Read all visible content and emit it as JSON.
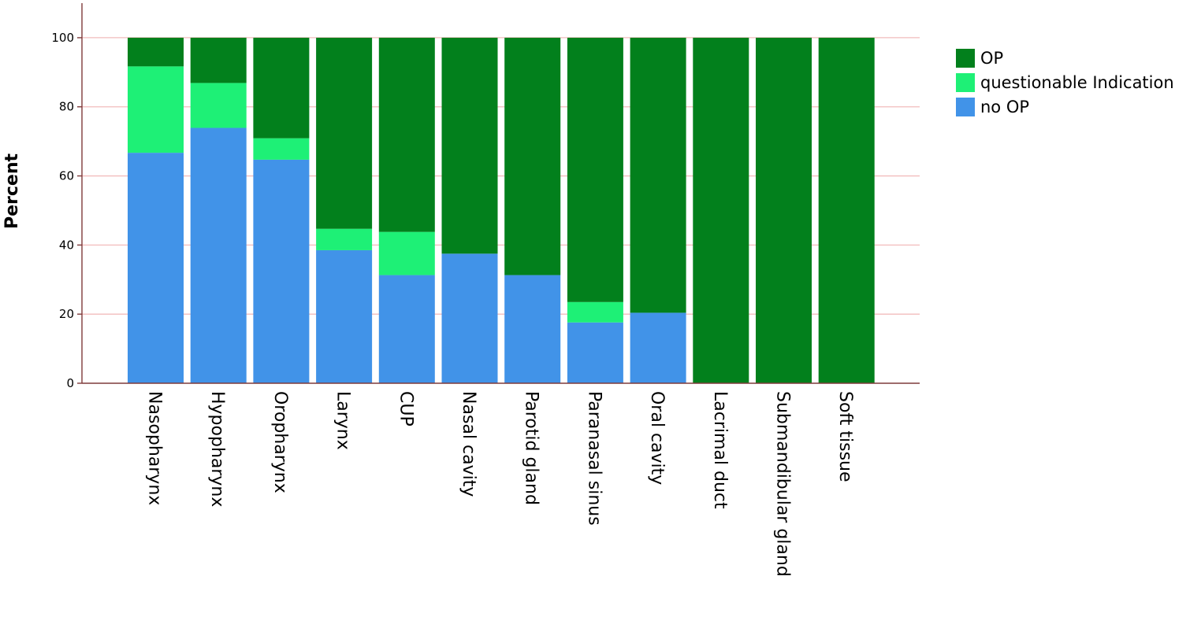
{
  "chart_data": {
    "type": "bar",
    "stacked": true,
    "categories": [
      "Nasopharynx",
      "Hypopharynx",
      "Oropharynx",
      "Larynx",
      "CUP",
      "Nasal cavity",
      "Parotid gland",
      "Paranasal sinus",
      "Oral cavity",
      "Lacrimal duct",
      "Submandibular gland",
      "Soft tissue"
    ],
    "series": [
      {
        "name": "no OP",
        "color": "#4193e8",
        "values": [
          66.7,
          73.9,
          64.7,
          38.5,
          31.3,
          37.5,
          31.3,
          17.6,
          20.4,
          0,
          0,
          0
        ]
      },
      {
        "name": "questionable Indication",
        "color": "#1ef076",
        "values": [
          25.0,
          13.0,
          6.2,
          6.2,
          12.5,
          0,
          0,
          5.9,
          0,
          0,
          0,
          0
        ]
      },
      {
        "name": "OP",
        "color": "#02801c",
        "values": [
          8.3,
          13.1,
          29.1,
          55.3,
          56.2,
          62.5,
          68.7,
          76.5,
          79.6,
          100,
          100,
          100
        ]
      }
    ],
    "legend_order": [
      "OP",
      "questionable Indication",
      "no OP"
    ],
    "legend_position": "right",
    "ylabel": "Percent",
    "xlabel": "",
    "ylim": [
      0,
      110
    ],
    "yticks": [
      0,
      20,
      40,
      60,
      80,
      100
    ],
    "grid": "horizontal"
  }
}
